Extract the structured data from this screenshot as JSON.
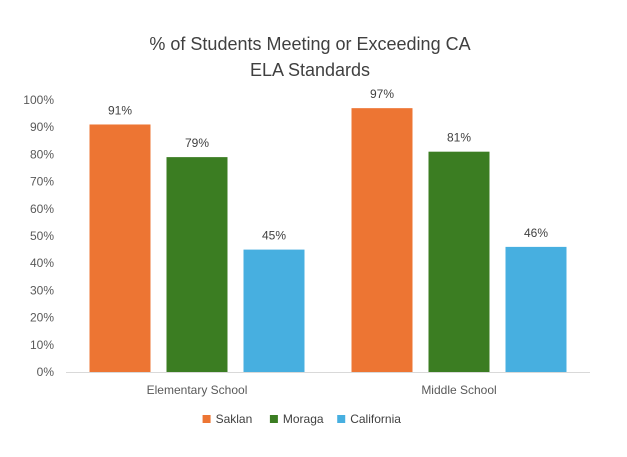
{
  "chart_data": {
    "type": "bar",
    "title_lines": [
      "% of Students Meeting or Exceeding CA",
      "ELA Standards"
    ],
    "categories": [
      "Elementary School",
      "Middle School"
    ],
    "series": [
      {
        "name": "Saklan",
        "color": "#ED7533",
        "values": [
          91,
          97
        ],
        "labels": [
          "91%",
          "97%"
        ]
      },
      {
        "name": "Moraga",
        "color": "#3B7D22",
        "values": [
          79,
          81
        ],
        "labels": [
          "79%",
          "81%"
        ]
      },
      {
        "name": "California",
        "color": "#47AFE0",
        "values": [
          45,
          46
        ],
        "labels": [
          "45%",
          "46%"
        ]
      }
    ],
    "yticks": [
      {
        "value": 0,
        "label": "0%"
      },
      {
        "value": 10,
        "label": "10%"
      },
      {
        "value": 20,
        "label": "20%"
      },
      {
        "value": 30,
        "label": "30%"
      },
      {
        "value": 40,
        "label": "40%"
      },
      {
        "value": 50,
        "label": "50%"
      },
      {
        "value": 60,
        "label": "60%"
      },
      {
        "value": 70,
        "label": "70%"
      },
      {
        "value": 80,
        "label": "80%"
      },
      {
        "value": 90,
        "label": "90%"
      },
      {
        "value": 100,
        "label": "100%"
      }
    ],
    "ylim": [
      0,
      100
    ],
    "grid": false,
    "legend_position": "bottom"
  }
}
